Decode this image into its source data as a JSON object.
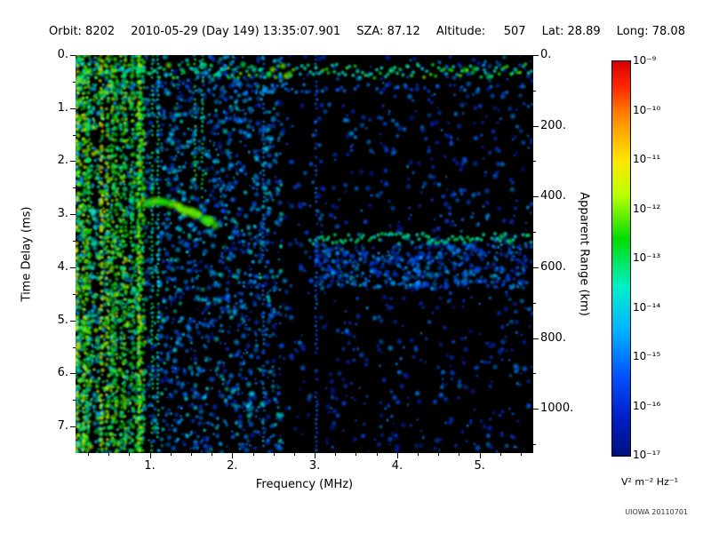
{
  "header": {
    "segments": [
      "Orbit: 8202",
      "2010-05-29 (Day 149) 13:35:07.901",
      "SZA: 87.12",
      "Altitude:     507",
      "Lat: 28.89",
      "Long: 78.08"
    ]
  },
  "chart_data": {
    "type": "heatmap",
    "xlabel": "Frequency (MHz)",
    "ylabel_left": "Time Delay (ms)",
    "ylabel_right": "Apparent Range (km)",
    "xlim": [
      0.1,
      5.65
    ],
    "ylim_ms": [
      0,
      7.5
    ],
    "ylim_range_km": [
      0,
      1125
    ],
    "x_ticks": [
      "1.",
      "2.",
      "3.",
      "4.",
      "5."
    ],
    "y_ticks_left": [
      "0.",
      "1.",
      "2.",
      "3.",
      "4.",
      "5.",
      "6.",
      "7."
    ],
    "y_ticks_right": [
      "0.",
      "200.",
      "400.",
      "600.",
      "800.",
      "1000."
    ],
    "background_color": "#000000",
    "colorbar": {
      "scale": "log",
      "range_top": "1e-9",
      "range_bottom": "1e-17",
      "tick_labels": [
        "10⁻⁹",
        "10⁻¹⁰",
        "10⁻¹¹",
        "10⁻¹²",
        "10⁻¹³",
        "10⁻¹⁴",
        "10⁻¹⁵",
        "10⁻¹⁶",
        "10⁻¹⁷"
      ],
      "units": "V² m⁻² Hz⁻¹",
      "stops": [
        {
          "p": 0,
          "c": "#d40000"
        },
        {
          "p": 6,
          "c": "#ff2200"
        },
        {
          "p": 14,
          "c": "#ff8800"
        },
        {
          "p": 25,
          "c": "#ffe600"
        },
        {
          "p": 34,
          "c": "#baff00"
        },
        {
          "p": 45,
          "c": "#00dc00"
        },
        {
          "p": 57,
          "c": "#00f0c8"
        },
        {
          "p": 68,
          "c": "#00b4ff"
        },
        {
          "p": 80,
          "c": "#0050ff"
        },
        {
          "p": 90,
          "c": "#0020c8"
        },
        {
          "p": 100,
          "c": "#001080"
        }
      ]
    },
    "features": [
      {
        "id": "background-speckle",
        "kind": "region",
        "freq_mhz": [
          0.95,
          5.65
        ],
        "delay_ms": [
          0,
          7.5
        ],
        "t": [
          0.1,
          0.3
        ],
        "count": 2400,
        "sparser_above_mhz": 2.6
      },
      {
        "id": "mid-band-speckle",
        "kind": "region",
        "freq_mhz": [
          0.95,
          2.6
        ],
        "delay_ms": [
          0,
          7.5
        ],
        "t": [
          0.22,
          0.45
        ],
        "count": 800
      },
      {
        "id": "subsurface-diffuse-scatter",
        "kind": "region",
        "freq_mhz": [
          3.0,
          5.6
        ],
        "delay_ms": [
          3.55,
          4.4
        ],
        "t": [
          0.14,
          0.34
        ],
        "count": 420
      },
      {
        "id": "low-freq-broadband-interference",
        "kind": "region",
        "freq_mhz": [
          0.1,
          0.95
        ],
        "delay_ms": [
          0,
          7.5
        ],
        "t": [
          0.3,
          0.68
        ],
        "count": 1500,
        "bias_low_freq": true
      },
      {
        "id": "interference-bright-columns",
        "kind": "columns",
        "freq_mhz": [
          0.12,
          0.92
        ],
        "delay_ms": [
          0,
          7.5
        ],
        "t": [
          0.5,
          0.72
        ],
        "count": 14
      },
      {
        "id": "rfi-vertical-streaks",
        "kind": "streaks",
        "streaks": [
          {
            "f": 1.03,
            "ms": [
              0,
              7.5
            ],
            "t": 0.5
          },
          {
            "f": 1.1,
            "ms": [
              0,
              7.5
            ],
            "t": 0.44
          },
          {
            "f": 1.55,
            "ms": [
              0,
              2.4
            ],
            "t": 0.55
          },
          {
            "f": 1.64,
            "ms": [
              0,
              2.7
            ],
            "t": 0.5
          },
          {
            "f": 2.38,
            "ms": [
              0,
              7.5
            ],
            "t": 0.26
          },
          {
            "f": 3.02,
            "ms": [
              0,
              7.5
            ],
            "t": 0.22
          }
        ]
      },
      {
        "id": "top-band-echo",
        "kind": "band",
        "delay_ms": 0.62,
        "thickness_ms": 0.09,
        "freq_mhz": [
          0.35,
          5.5
        ],
        "t": [
          0.16,
          0.3
        ],
        "density": 0.35
      },
      {
        "id": "top-surface-noise-band",
        "kind": "band",
        "delay_ms": 0.3,
        "thickness_ms": 0.13,
        "freq_mhz": [
          0.1,
          5.65
        ],
        "t": [
          0.35,
          0.62
        ],
        "density": 1.0
      },
      {
        "id": "surface-reflection-band",
        "kind": "band",
        "delay_ms": 3.46,
        "thickness_ms": 0.1,
        "freq_mhz": [
          2.95,
          5.65
        ],
        "t": [
          0.38,
          0.52
        ],
        "density": 0.95
      },
      {
        "id": "ionospheric-echo-trace",
        "kind": "trace",
        "t": 0.58,
        "thickness_px": 7,
        "points_f_ms": [
          [
            0.95,
            2.8
          ],
          [
            1.15,
            2.76
          ],
          [
            1.35,
            2.85
          ],
          [
            1.55,
            2.98
          ],
          [
            1.7,
            3.1
          ],
          [
            1.8,
            3.22
          ]
        ]
      }
    ]
  },
  "footer": {
    "watermark": "UIOWA 20110701"
  }
}
